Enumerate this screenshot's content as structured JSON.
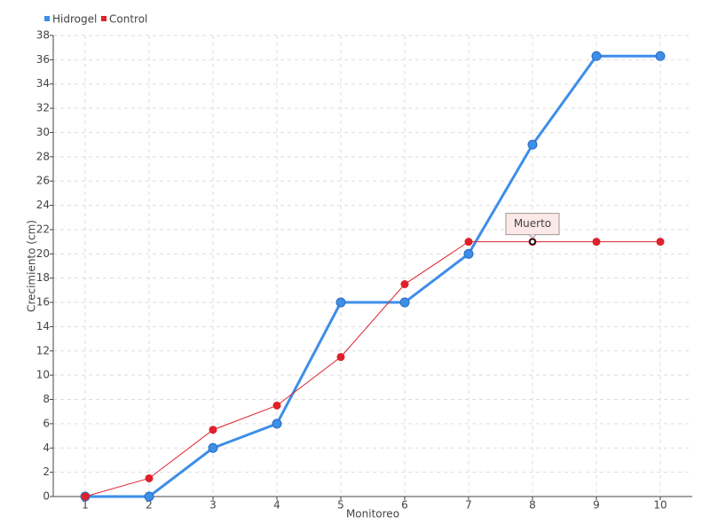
{
  "chart_data": {
    "type": "line",
    "x_label": "Monitoreo",
    "y_label": "Crecimiento (cm)",
    "categories": [
      "1",
      "2",
      "3",
      "4",
      "5",
      "6",
      "7",
      "8",
      "9",
      "10"
    ],
    "series": [
      {
        "name": "Hidrogel",
        "color": "#3d8ee8",
        "values": [
          0,
          0,
          4,
          6,
          16,
          16,
          20,
          29,
          36.3,
          36.3
        ]
      },
      {
        "name": "Control",
        "color": "#e0202a",
        "values": [
          0,
          1.5,
          5.5,
          7.5,
          11.5,
          17.5,
          21,
          21,
          21,
          21
        ]
      }
    ],
    "ylim": [
      0,
      38
    ],
    "yticks": [
      0,
      2,
      4,
      6,
      8,
      10,
      12,
      14,
      16,
      18,
      20,
      22,
      24,
      26,
      28,
      30,
      32,
      34,
      36,
      38
    ],
    "grid": true,
    "legend": "top-left",
    "annotations": [
      {
        "text": "Muerto",
        "series": "Control",
        "x": "8"
      }
    ]
  }
}
